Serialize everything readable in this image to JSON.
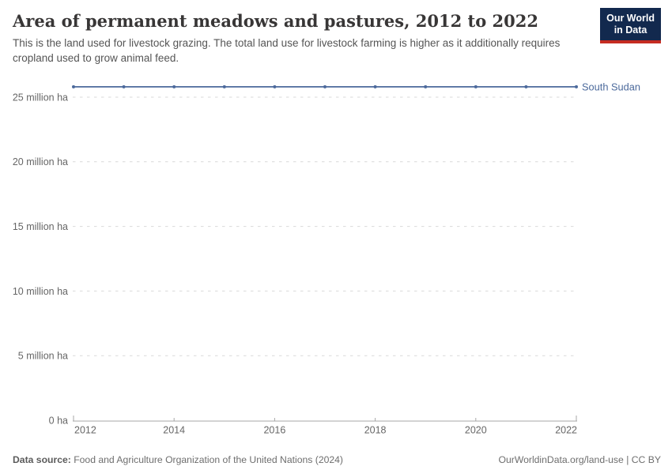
{
  "header": {
    "title": "Area of permanent meadows and pastures, 2012 to 2022",
    "subtitle": "This is the land used for livestock grazing. The total land use for livestock farming is higher as it additionally requires cropland used to grow animal feed.",
    "logo": {
      "line1": "Our World",
      "line2": "in Data"
    }
  },
  "chart_data": {
    "type": "line",
    "title": "Area of permanent meadows and pastures, 2012 to 2022",
    "x": [
      2012,
      2013,
      2014,
      2015,
      2016,
      2017,
      2018,
      2019,
      2020,
      2021,
      2022
    ],
    "series": [
      {
        "name": "South Sudan",
        "color": "#4C6A9C",
        "values": [
          25.8,
          25.8,
          25.8,
          25.8,
          25.8,
          25.8,
          25.8,
          25.8,
          25.8,
          25.8,
          25.8
        ]
      }
    ],
    "unit": "million ha",
    "ylim": [
      0,
      25
    ],
    "y_ticks": [
      {
        "value": 0,
        "label": "0 ha"
      },
      {
        "value": 5,
        "label": "5 million ha"
      },
      {
        "value": 10,
        "label": "10 million ha"
      },
      {
        "value": 15,
        "label": "15 million ha"
      },
      {
        "value": 20,
        "label": "20 million ha"
      },
      {
        "value": 25,
        "label": "25 million ha"
      }
    ],
    "x_ticks": [
      2012,
      2014,
      2016,
      2018,
      2020,
      2022
    ],
    "grid": true,
    "legend_position": "end-of-line"
  },
  "footer": {
    "source_label": "Data source:",
    "source_text": " Food and Agriculture Organization of the United Nations (2024)",
    "attribution": "OurWorldinData.org/land-use | CC BY"
  },
  "colors": {
    "line": "#4C6A9C",
    "entity_label": "#4C6A9C",
    "grid": "#d9d9d9",
    "axis": "#a7a7a7",
    "tick_text": "#666666",
    "title_text": "#383636",
    "subtitle_text": "#555555",
    "footer_text": "#6e6e6e",
    "logo_bg": "#12294e",
    "logo_accent": "#c52c22"
  }
}
